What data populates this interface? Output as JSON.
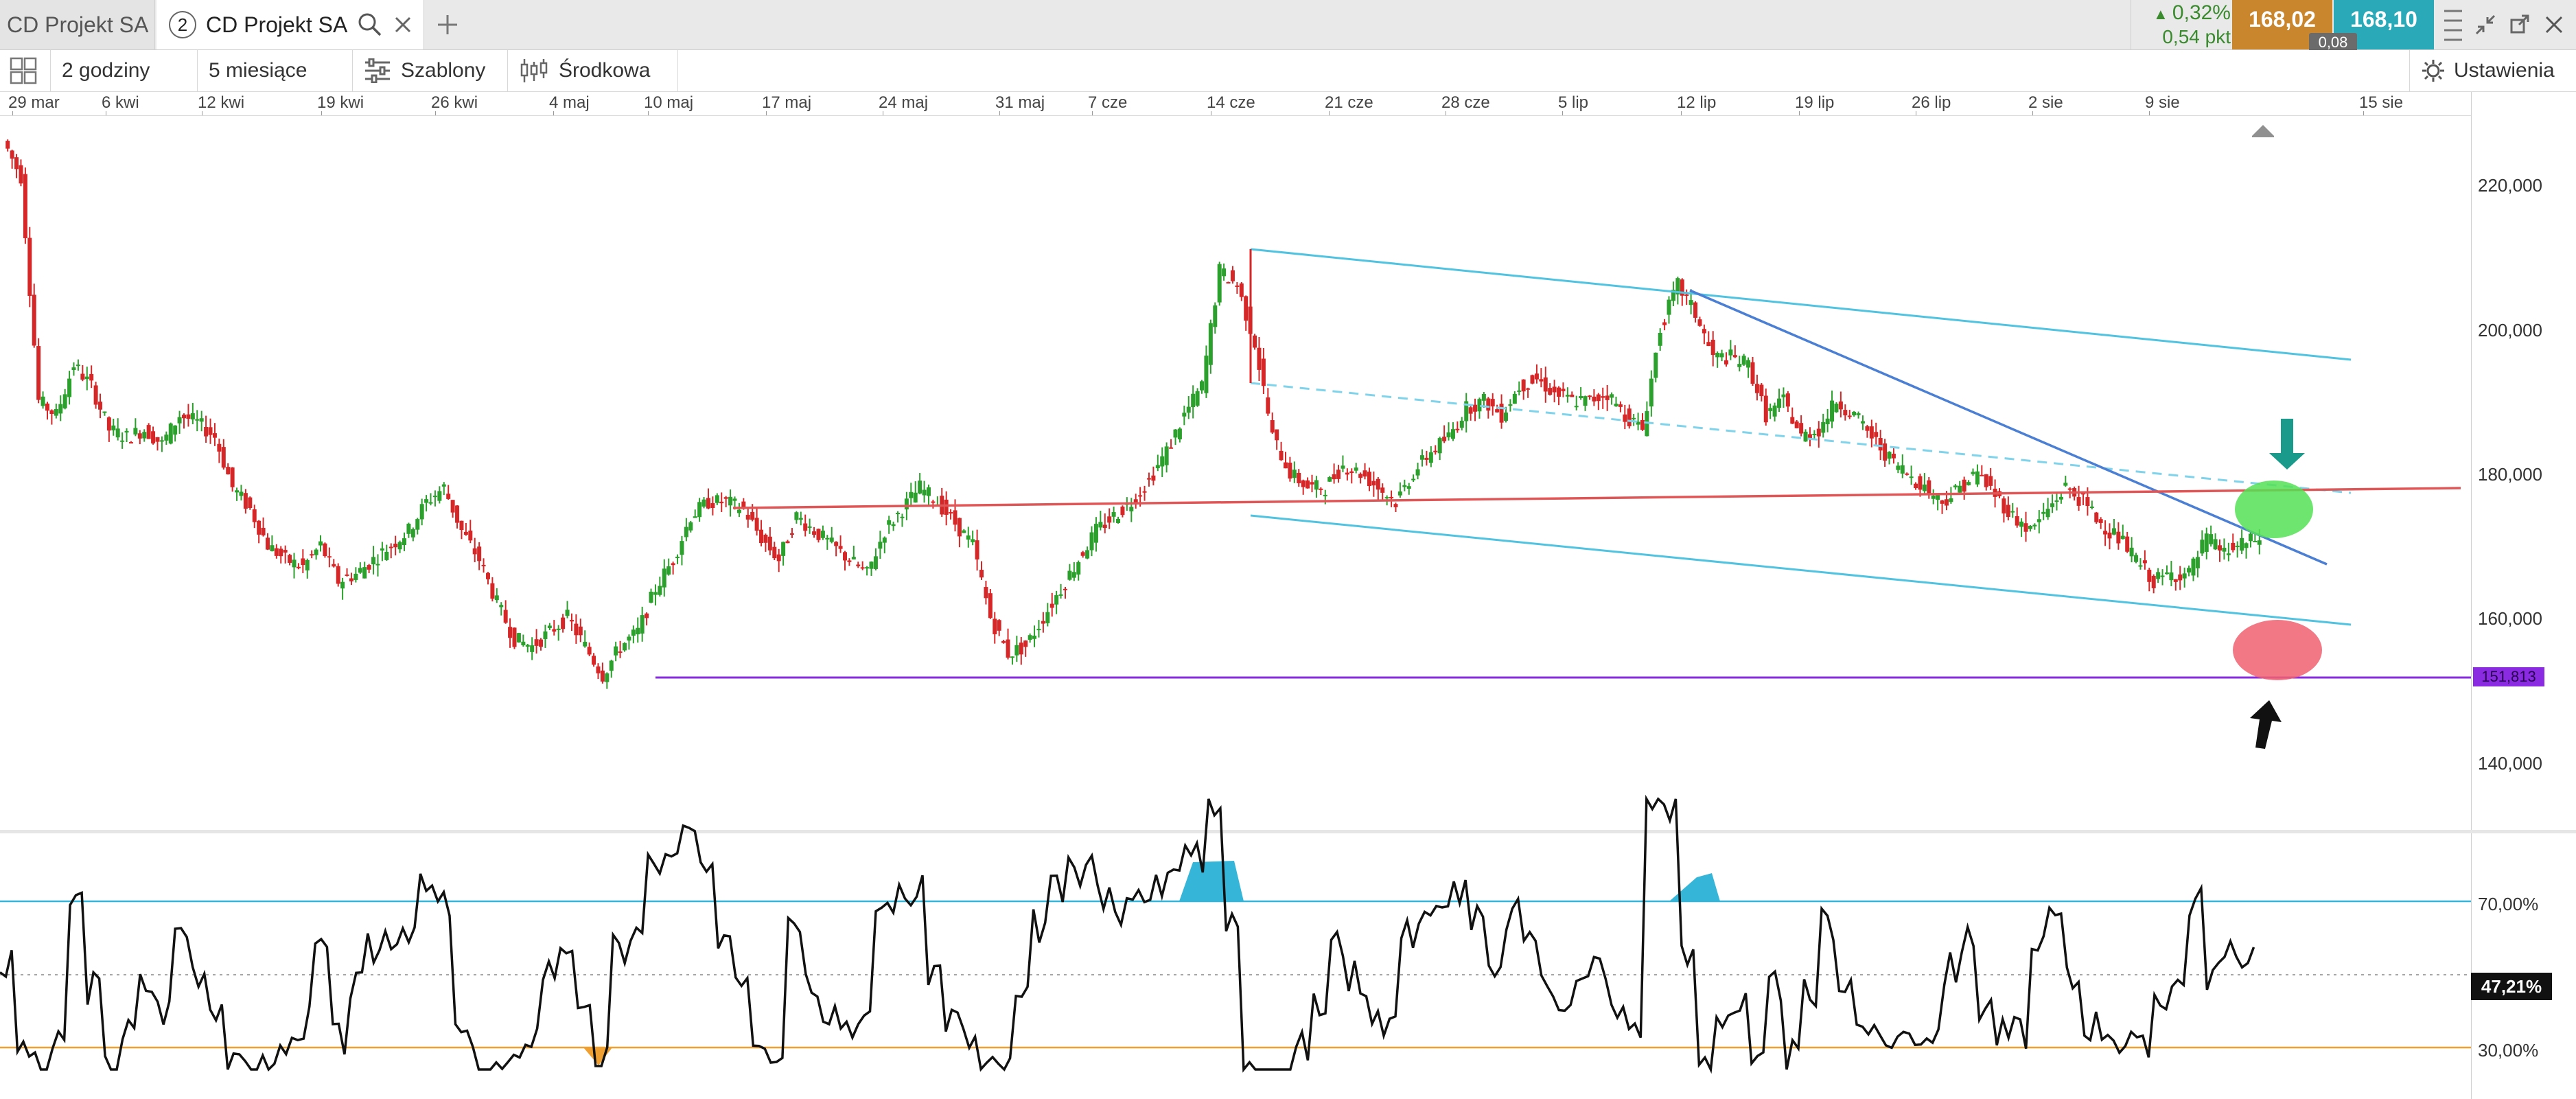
{
  "tabs": [
    {
      "label": "CD Projekt SA",
      "active": false
    },
    {
      "label": "CD Projekt SA",
      "active": true,
      "number": "2"
    }
  ],
  "quote": {
    "change_pct": "0,32%",
    "change_pts": "0,54 pkt",
    "bid": "168,02",
    "ask": "168,10",
    "spread": "0,08",
    "bid_color": "#c9862d",
    "ask_color": "#2aaab8"
  },
  "toolbar": {
    "interval": "2 godziny",
    "range": "5 miesiące",
    "templates": "Szablony",
    "indicator": "Środkowa",
    "settings": "Ustawienia"
  },
  "date_labels": [
    "29 mar",
    "6 kwi",
    "12 kwi",
    "19 kwi",
    "26 kwi",
    "4 maj",
    "10 maj",
    "17 maj",
    "24 maj",
    "31 maj",
    "7 cze",
    "14 cze",
    "21 cze",
    "28 cze",
    "5 lip",
    "12 lip",
    "19 lip",
    "26 lip",
    "2 sie",
    "9 sie",
    "15 sie"
  ],
  "price_labels": [
    "220,000",
    "200,000",
    "180,000",
    "160,000",
    "140,000"
  ],
  "rsi_labels": [
    "70,00%",
    "30,00%"
  ],
  "rsi_value": "47,21%",
  "support_level": "151,813",
  "colors": {
    "up": "#2ca02c",
    "down": "#d62728",
    "channel": "#4fc3e0",
    "trend": "#4a7fd4",
    "resistance": "#e05555",
    "support": "#8a2be2",
    "rsi_line": "#111111",
    "rsi_upper": "#35b6d8",
    "rsi_lower": "#f0a030",
    "green_zone": "#55e055",
    "red_zone": "#f06070",
    "up_arrow": "#1a9a8a",
    "down_arrow": "#111111"
  },
  "icons": [
    "layout-icon",
    "templates-icon",
    "candles-icon",
    "gear-icon",
    "search-icon",
    "close-icon",
    "plus-icon",
    "menu-icon",
    "shrink-icon",
    "popout-icon",
    "window-close-icon",
    "home-marker-icon"
  ],
  "chart_data": {
    "type": "candlestick",
    "price_range": [
      130,
      230
    ],
    "rsi_range": [
      20,
      100
    ],
    "rsi_levels": [
      70,
      30
    ],
    "grid": false,
    "close_series_approx": [
      226,
      221,
      190,
      188,
      195,
      192,
      186,
      185,
      186,
      184,
      188,
      187,
      185,
      178,
      175,
      170,
      168,
      167,
      170,
      165,
      166,
      168,
      170,
      172,
      176,
      178,
      172,
      168,
      162,
      157,
      156,
      158,
      160,
      156,
      152,
      156,
      158,
      164,
      168,
      174,
      176,
      176,
      175,
      171,
      168,
      174,
      172,
      170,
      168,
      166,
      172,
      175,
      178,
      176,
      173,
      170,
      160,
      155,
      156,
      160,
      164,
      168,
      172,
      174,
      176,
      179,
      183,
      188,
      192,
      208,
      206,
      198,
      185,
      180,
      178,
      178,
      181,
      180,
      178,
      176,
      180,
      183,
      185,
      189,
      190,
      188,
      192,
      193,
      191,
      190,
      190,
      191,
      188,
      186,
      200,
      206,
      202,
      196,
      196,
      195,
      188,
      190,
      185,
      186,
      190,
      188,
      185,
      182,
      180,
      178,
      176,
      178,
      180,
      177,
      174,
      172,
      175,
      178,
      176,
      173,
      171,
      168,
      165,
      166,
      166,
      171,
      169,
      170,
      171
    ]
  }
}
